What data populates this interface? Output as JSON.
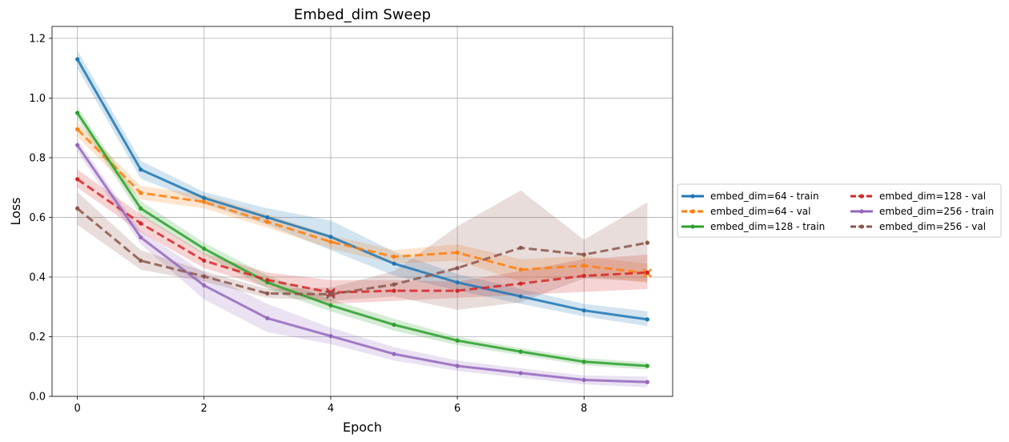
{
  "chart_data": {
    "type": "line",
    "title": "Embed_dim Sweep",
    "xlabel": "Epoch",
    "ylabel": "Loss",
    "xlim": [
      -0.4,
      9.4
    ],
    "ylim": [
      0.0,
      1.24
    ],
    "xticks": [
      0,
      2,
      4,
      6,
      8
    ],
    "xtick_labels": [
      "0",
      "2",
      "4",
      "6",
      "8"
    ],
    "yticks": [
      0.0,
      0.2,
      0.4,
      0.6,
      0.8,
      1.0,
      1.2
    ],
    "ytick_labels": [
      "0.0",
      "0.2",
      "0.4",
      "0.6",
      "0.8",
      "1.0",
      "1.2"
    ],
    "grid": true,
    "legend_position": "outside-right",
    "legend_columns": 2,
    "x": [
      0,
      1,
      2,
      3,
      4,
      5,
      6,
      7,
      8,
      9
    ],
    "series": [
      {
        "name": "embed_dim=64 - train",
        "color": "#1f77b4",
        "style": "solid",
        "values": [
          1.13,
          0.76,
          0.665,
          0.6,
          0.535,
          0.445,
          0.382,
          0.335,
          0.288,
          0.258
        ],
        "band_low": [
          1.1,
          0.73,
          0.645,
          0.575,
          0.49,
          0.405,
          0.355,
          0.31,
          0.268,
          0.235
        ],
        "band_high": [
          1.16,
          0.79,
          0.685,
          0.63,
          0.59,
          0.485,
          0.41,
          0.36,
          0.31,
          0.285
        ]
      },
      {
        "name": "embed_dim=64 - val",
        "color": "#ff7f0e",
        "style": "dashed",
        "values": [
          0.895,
          0.682,
          0.652,
          0.585,
          0.518,
          0.468,
          0.482,
          0.425,
          0.438,
          0.413
        ],
        "band_low": [
          0.87,
          0.66,
          0.63,
          0.565,
          0.495,
          0.445,
          0.455,
          0.385,
          0.405,
          0.38
        ],
        "band_high": [
          0.92,
          0.705,
          0.675,
          0.61,
          0.54,
          0.49,
          0.51,
          0.46,
          0.47,
          0.445
        ],
        "marker_x": 9,
        "marker_value": 0.413
      },
      {
        "name": "embed_dim=128 - train",
        "color": "#2ca02c",
        "style": "solid",
        "values": [
          0.95,
          0.63,
          0.495,
          0.382,
          0.305,
          0.24,
          0.187,
          0.15,
          0.116,
          0.102
        ],
        "band_low": [
          0.93,
          0.605,
          0.475,
          0.36,
          0.285,
          0.22,
          0.172,
          0.138,
          0.104,
          0.09
        ],
        "band_high": [
          0.97,
          0.655,
          0.515,
          0.405,
          0.325,
          0.26,
          0.2,
          0.162,
          0.128,
          0.114
        ]
      },
      {
        "name": "embed_dim=128 - val",
        "color": "#d62728",
        "style": "dashed",
        "values": [
          0.728,
          0.58,
          0.455,
          0.39,
          0.348,
          0.354,
          0.354,
          0.378,
          0.404,
          0.415
        ],
        "band_low": [
          0.7,
          0.55,
          0.43,
          0.365,
          0.31,
          0.32,
          0.33,
          0.34,
          0.35,
          0.36
        ],
        "band_high": [
          0.76,
          0.61,
          0.48,
          0.415,
          0.39,
          0.39,
          0.385,
          0.42,
          0.46,
          0.475
        ],
        "marker_x": 4,
        "marker_value": 0.348
      },
      {
        "name": "embed_dim=256 - train",
        "color": "#9467bd",
        "style": "solid",
        "values": [
          0.842,
          0.533,
          0.372,
          0.262,
          0.202,
          0.142,
          0.102,
          0.078,
          0.055,
          0.048
        ],
        "band_low": [
          0.82,
          0.51,
          0.325,
          0.215,
          0.175,
          0.12,
          0.085,
          0.062,
          0.04,
          0.03
        ],
        "band_high": [
          0.86,
          0.555,
          0.415,
          0.31,
          0.23,
          0.165,
          0.12,
          0.094,
          0.07,
          0.066
        ]
      },
      {
        "name": "embed_dim=256 - val",
        "color": "#8c564b",
        "style": "dashed",
        "values": [
          0.63,
          0.455,
          0.402,
          0.345,
          0.342,
          0.375,
          0.43,
          0.498,
          0.475,
          0.515
        ],
        "band_low": [
          0.575,
          0.425,
          0.385,
          0.33,
          0.32,
          0.335,
          0.29,
          0.315,
          0.395,
          0.385
        ],
        "band_high": [
          0.685,
          0.49,
          0.42,
          0.36,
          0.365,
          0.42,
          0.57,
          0.69,
          0.525,
          0.65
        ],
        "marker_x": 4,
        "marker_value": 0.342
      }
    ]
  }
}
